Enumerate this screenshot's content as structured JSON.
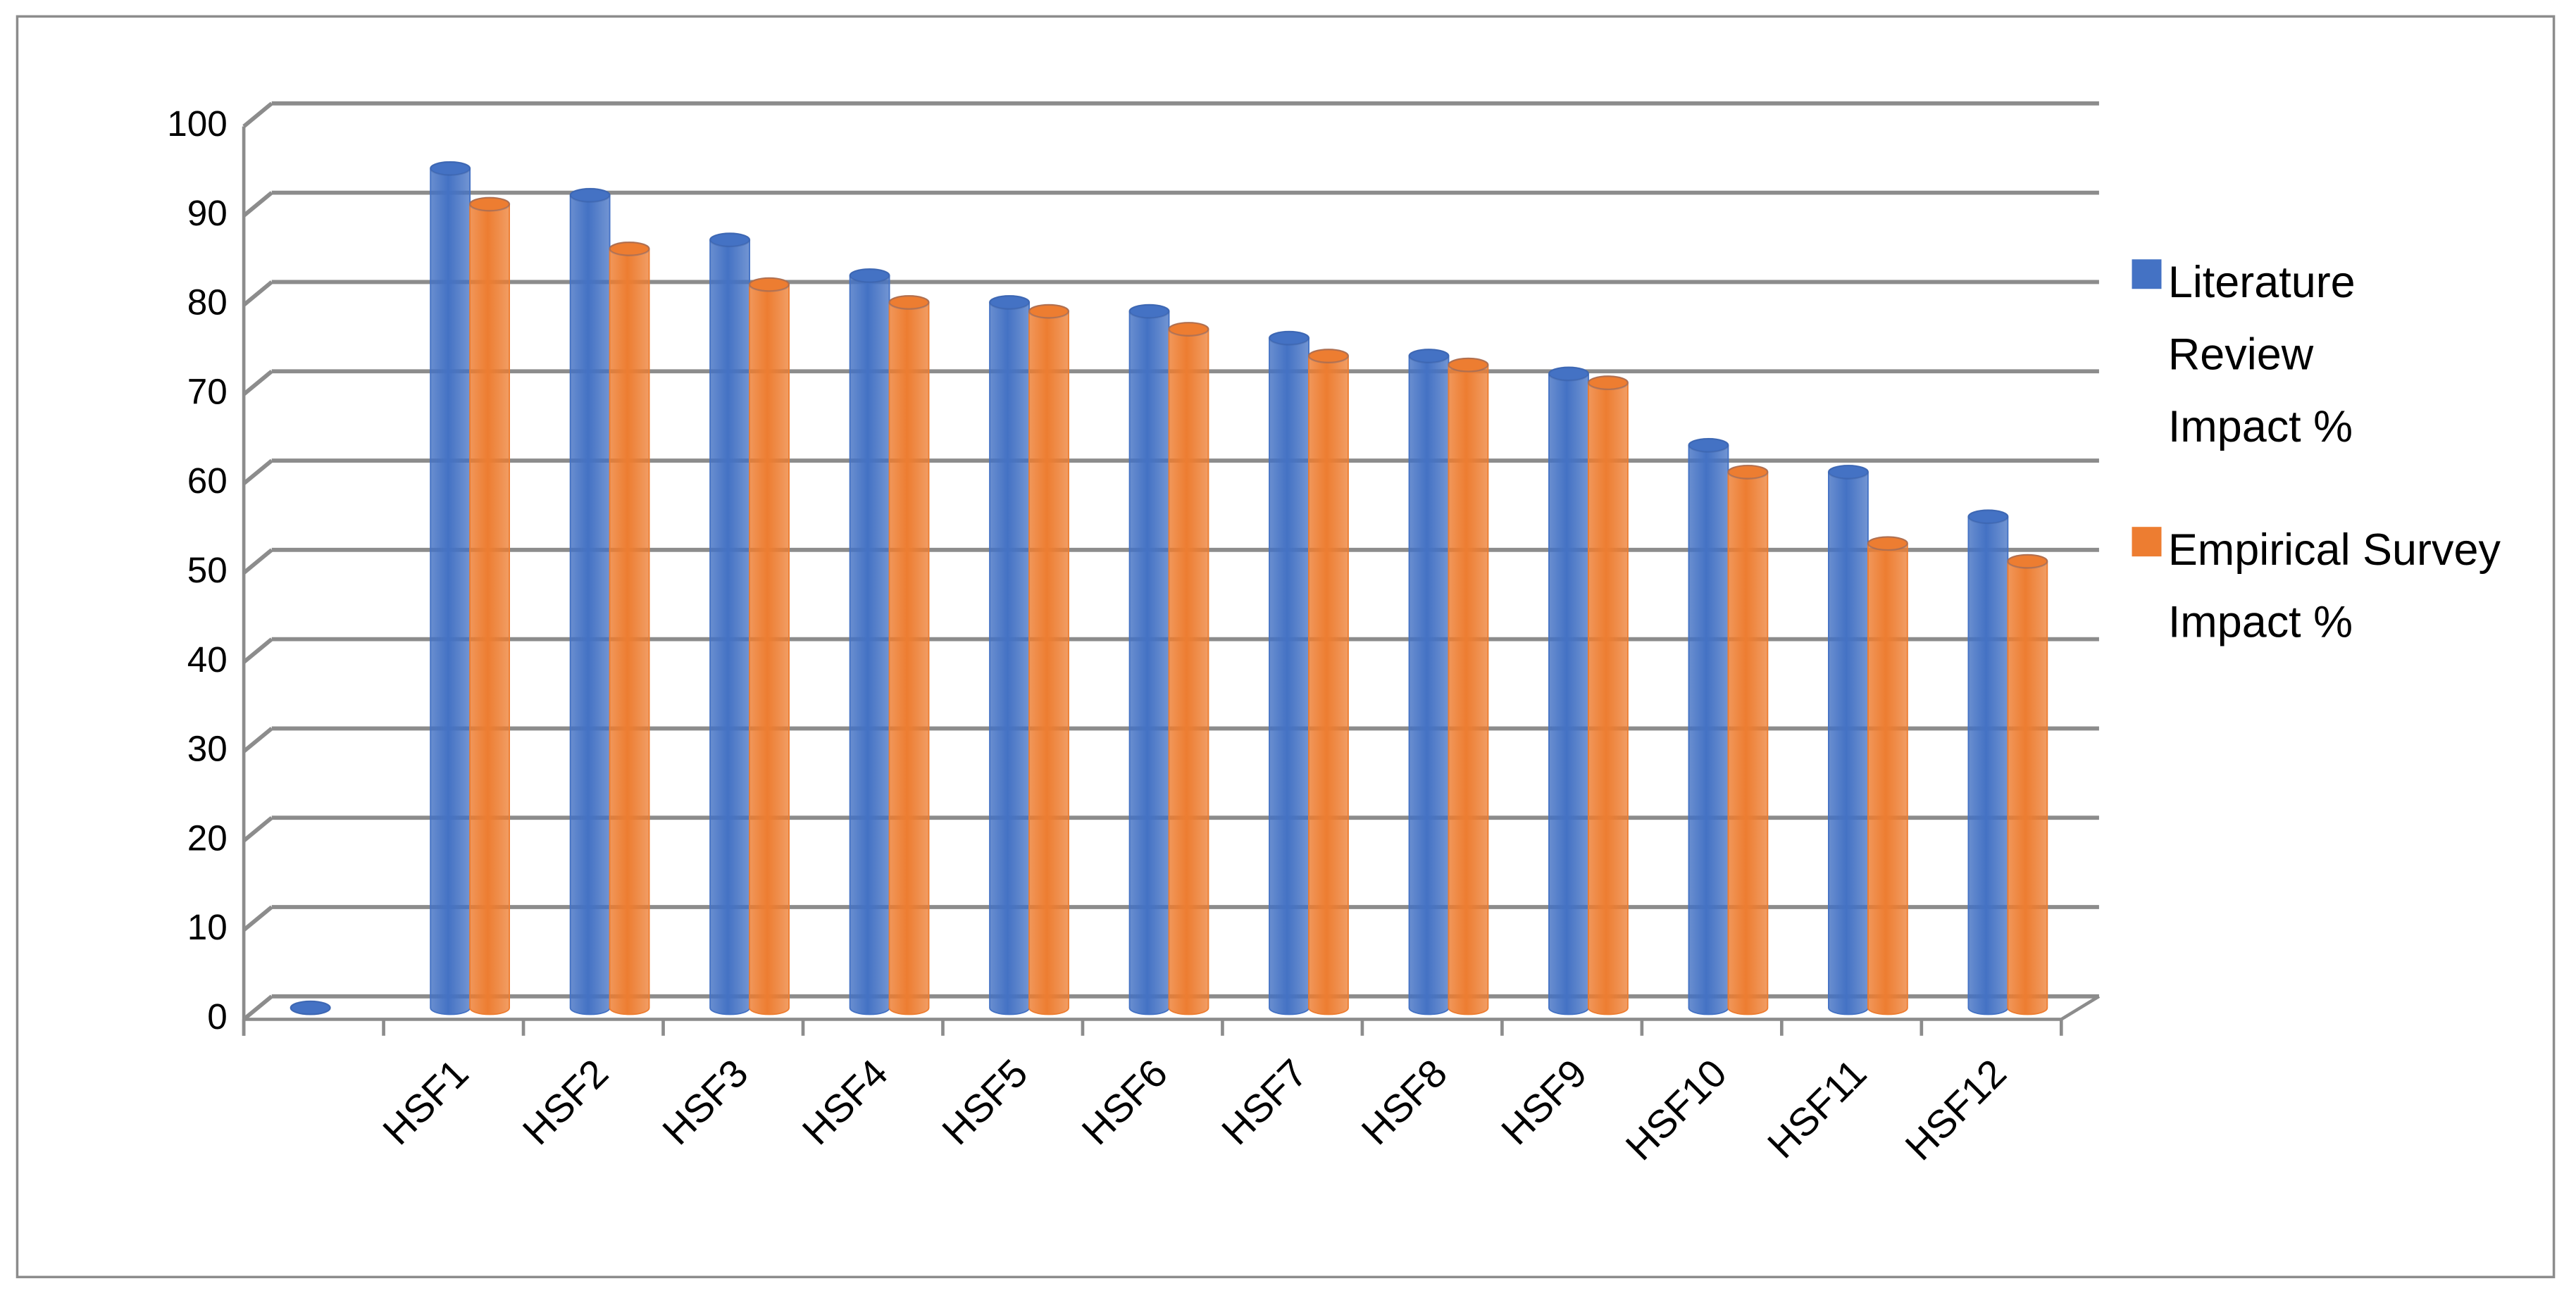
{
  "chart_data": {
    "type": "bar3d",
    "categories": [
      null,
      "HSF1",
      "HSF2",
      "HSF3",
      "HSF4",
      "HSF5",
      "HSF6",
      "HSF7",
      "HSF8",
      "HSF9",
      "HSF10",
      "HSF11",
      "HSF12"
    ],
    "series": [
      {
        "name": "Literature Review Impact %",
        "color": "#4472c4",
        "values": [
          0,
          94,
          91,
          86,
          82,
          79,
          78,
          75,
          73,
          71,
          63,
          60,
          55
        ]
      },
      {
        "name": "Empirical Survey Impact %",
        "color": "#ed7d31",
        "values": [
          null,
          90,
          85,
          81,
          79,
          78,
          76,
          73,
          72,
          70,
          60,
          52,
          50
        ]
      }
    ],
    "ylim": [
      0,
      100
    ],
    "yticks": [
      0,
      10,
      20,
      30,
      40,
      50,
      60,
      70,
      80,
      90,
      100
    ],
    "grid": true,
    "legend": "right"
  }
}
